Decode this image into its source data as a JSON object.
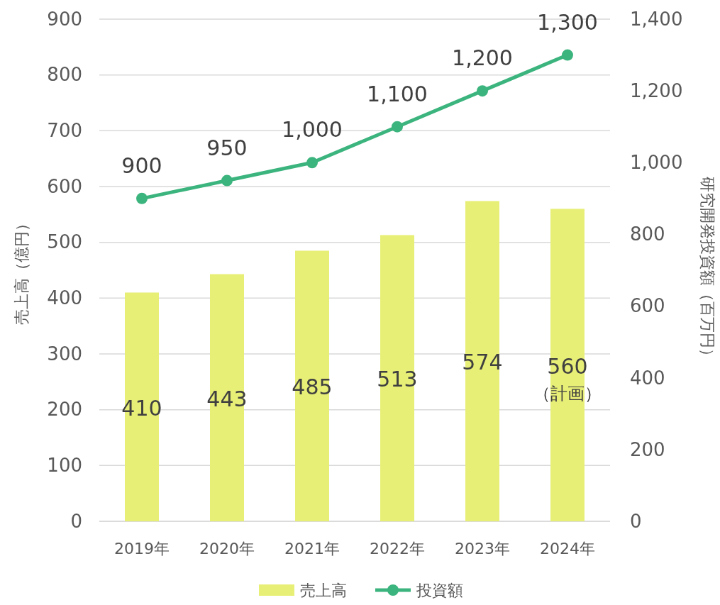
{
  "chart_data": {
    "type": "bar",
    "categories": [
      "2019年",
      "2020年",
      "2021年",
      "2022年",
      "2023年",
      "2024年"
    ],
    "series": [
      {
        "name": "売上高",
        "color": "#e8ef77",
        "values": [
          410,
          443,
          485,
          513,
          574,
          560
        ],
        "value_labels": [
          "410",
          "443",
          "485",
          "513",
          "574",
          "560\n（計画）"
        ]
      },
      {
        "name": "投資額",
        "type": "line",
        "axis": "y2",
        "color": "#3cb47e",
        "marker": "circle",
        "values": [
          900,
          950,
          1000,
          1100,
          1200,
          1300
        ],
        "value_labels": [
          "900",
          "950",
          "1,000",
          "1,100",
          "1,200",
          "1,300"
        ]
      }
    ],
    "ylabel": "売上高（億円）",
    "y2label": "研究開発投資額（百万円）",
    "ylim": [
      0,
      900
    ],
    "yticks": [
      0,
      100,
      200,
      300,
      400,
      500,
      600,
      700,
      800,
      900
    ],
    "y2lim": [
      0,
      1400
    ],
    "y2ticks": [
      0,
      {
        "value": 200,
        "label": "200"
      },
      {
        "value": 400,
        "label": "400"
      },
      {
        "value": 600,
        "label": "600"
      },
      {
        "value": 800,
        "label": "800"
      },
      {
        "value": 1000,
        "label": "1,000"
      },
      {
        "value": 1200,
        "label": "1,200"
      },
      {
        "value": 1400,
        "label": "1,400"
      }
    ],
    "grid": "y",
    "legend": "bottom"
  }
}
